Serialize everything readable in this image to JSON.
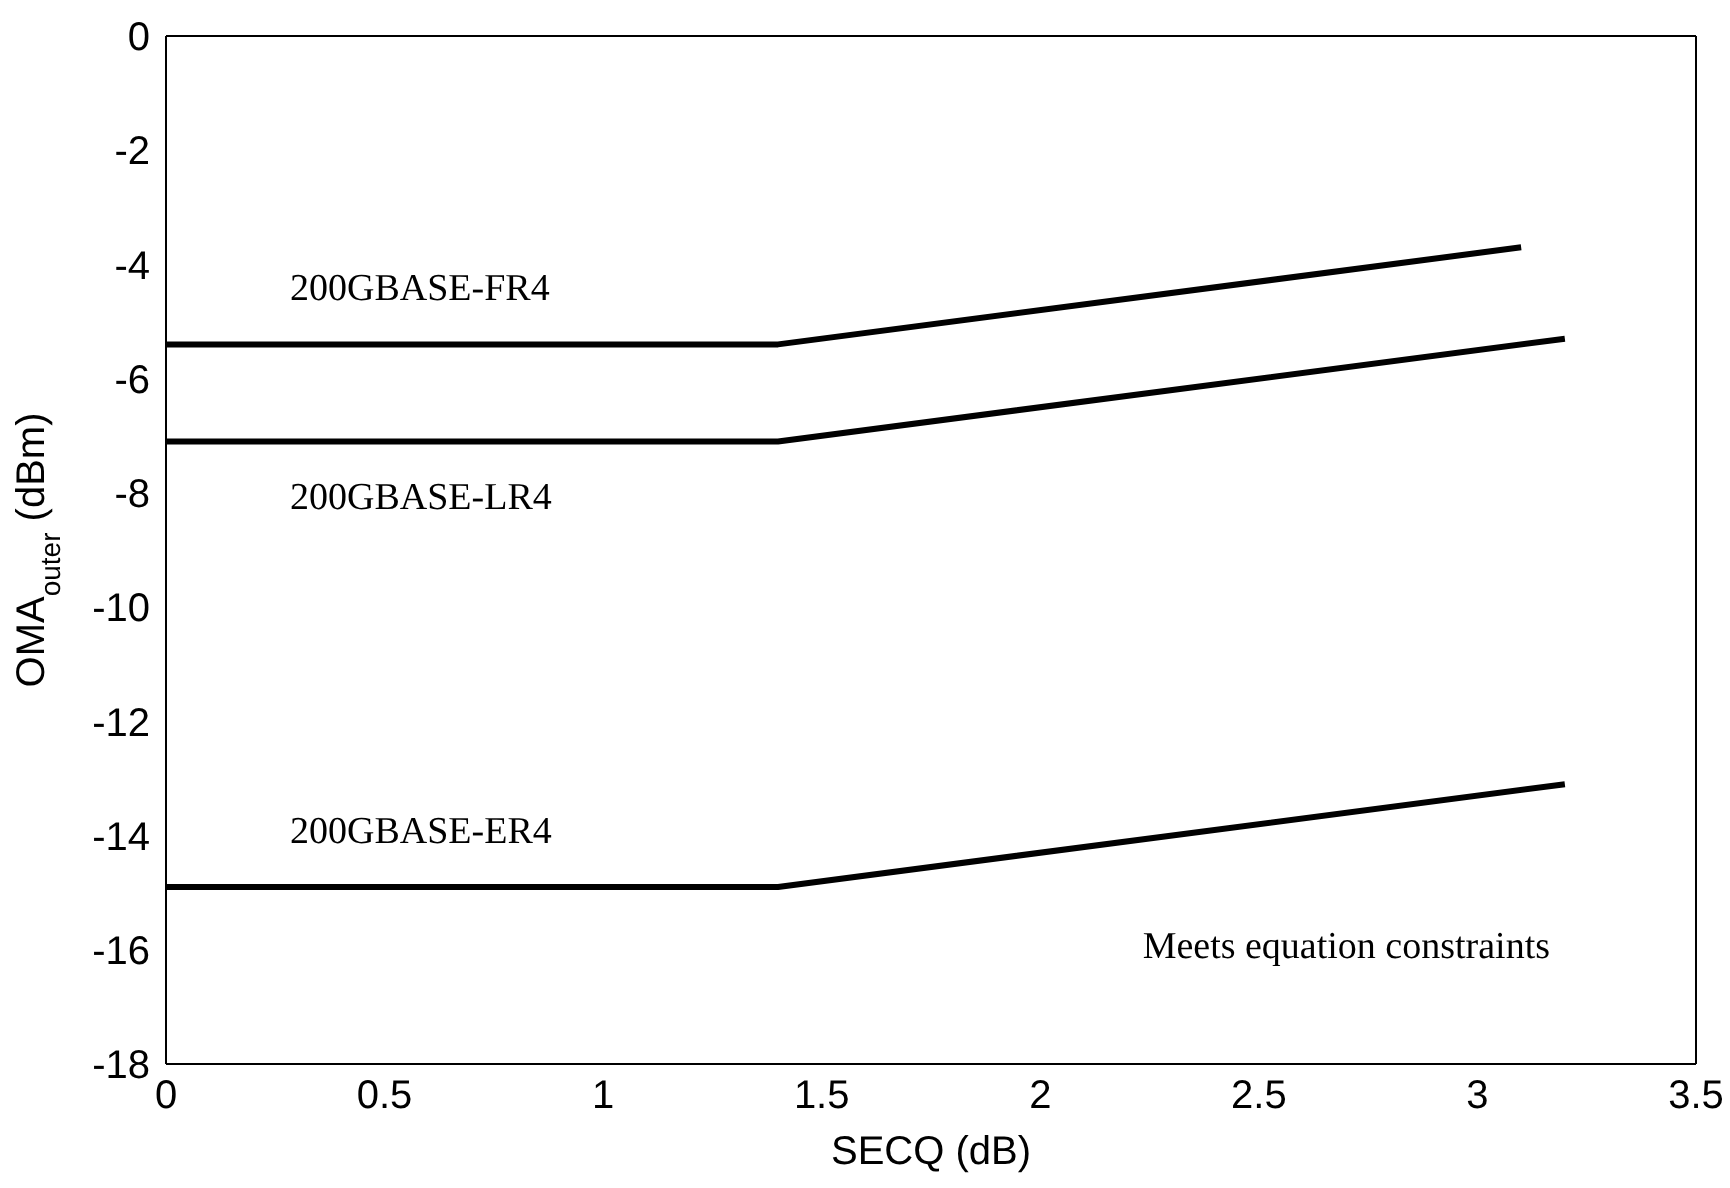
{
  "chart_data": {
    "type": "line",
    "xlabel": "SECQ (dB)",
    "ylabel": "OMA$_{outer}$ (dBm)",
    "xlim": [
      0,
      3.5
    ],
    "xticks": [
      0,
      0.5,
      1,
      1.5,
      2,
      2.5,
      3,
      3.5
    ],
    "ylim": [
      -18,
      0
    ],
    "yticks": [
      0,
      -2,
      -4,
      -6,
      -8,
      -10,
      -12,
      -14,
      -16,
      -18
    ],
    "marker": "none",
    "line_style": "solid",
    "series": [
      {
        "name": "200GBASE-FR4",
        "color": "#000000",
        "x": [
          0,
          1.4,
          3.1
        ],
        "values": [
          -5.4,
          -5.4,
          -3.7
        ]
      },
      {
        "name": "200GBASE-LR4",
        "color": "#000000",
        "x": [
          0,
          1.4,
          3.2
        ],
        "values": [
          -7.1,
          -7.1,
          -5.3
        ]
      },
      {
        "name": "200GBASE-ER4",
        "color": "#000000",
        "x": [
          0,
          1.4,
          3.2
        ],
        "values": [
          -14.9,
          -14.9,
          -13.1
        ]
      }
    ],
    "annotations": [
      "Meets equation constraints"
    ]
  }
}
